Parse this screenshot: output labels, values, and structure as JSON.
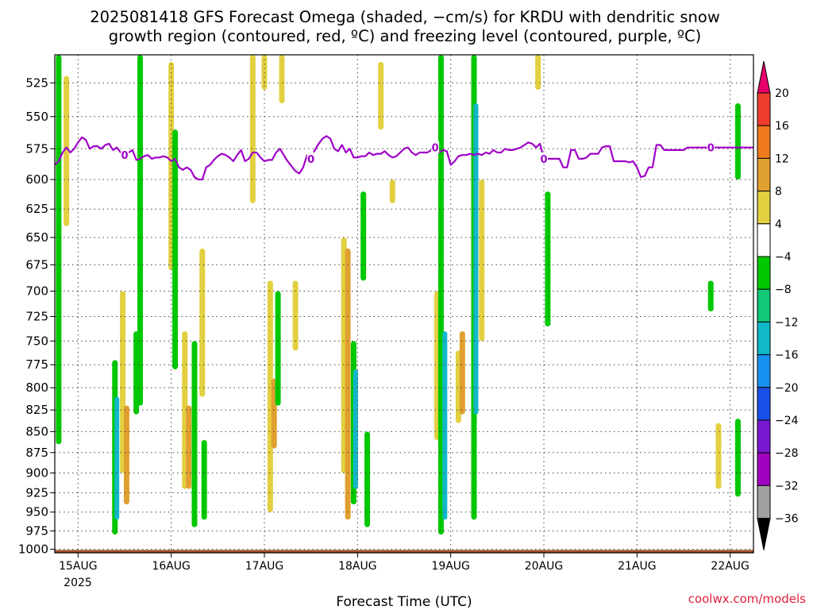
{
  "chart_data": {
    "type": "heatmap",
    "title_lines": [
      "2025081418 GFS Forecast Omega (shaded, −cm/s) for KRDU with dendritic snow",
      "growth region (contoured, red, ºC) and freezing level (contoured, purple, ºC)"
    ],
    "xlabel": "Forecast Time (UTC)",
    "ylabel": "",
    "x_tick_labels": [
      "15AUG",
      "16AUG",
      "17AUG",
      "18AUG",
      "19AUG",
      "20AUG",
      "21AUG",
      "22AUG"
    ],
    "x_tick_hours": [
      6,
      30,
      54,
      78,
      102,
      126,
      150,
      174
    ],
    "x_year_label": "2025",
    "xlim_hours": [
      0,
      180
    ],
    "y_ticks": [
      525,
      550,
      575,
      600,
      625,
      650,
      675,
      700,
      725,
      750,
      775,
      800,
      825,
      850,
      875,
      900,
      925,
      950,
      975,
      1000
    ],
    "ylim_hPa": [
      505,
      1005
    ],
    "y_scale": "log-pressure",
    "grid": "dotted",
    "colorbar_levels": [
      "20",
      "16",
      "12",
      "8",
      "4",
      "−4",
      "−8",
      "−12",
      "−16",
      "−20",
      "−24",
      "−28",
      "−32",
      "−36"
    ],
    "colorbar_colors": [
      "#e8006c",
      "#f03c2e",
      "#f07a1e",
      "#e0a030",
      "#e2d040",
      "#ffffff",
      "#00c800",
      "#10c878",
      "#10b8c8",
      "#1890f0",
      "#1850e8",
      "#7818d0",
      "#a000c0",
      "#a0a0a0"
    ],
    "freezing_level_hPa": {
      "hour": [
        0,
        1,
        2,
        3,
        4,
        5,
        6,
        7,
        8,
        9,
        10,
        11,
        12,
        13,
        14,
        15,
        16,
        17,
        18,
        19,
        20,
        21,
        22,
        23,
        24,
        25,
        26,
        27,
        28,
        29,
        30,
        31,
        32,
        33,
        34,
        35,
        36,
        37,
        38,
        39,
        40,
        41,
        42,
        43,
        44,
        45,
        46,
        47,
        48,
        49,
        50,
        51,
        52,
        53,
        54,
        55,
        56,
        57,
        58,
        59,
        60,
        61,
        62,
        63,
        64,
        65,
        66,
        67,
        68,
        69,
        70,
        71,
        72,
        73,
        74,
        75,
        76,
        77,
        78,
        79,
        80,
        81,
        82,
        83,
        84,
        85,
        86,
        87,
        88,
        89,
        90,
        91,
        92,
        93,
        94,
        95,
        96,
        97,
        98,
        99,
        100,
        101,
        102,
        103,
        104,
        105,
        106,
        107,
        108,
        109,
        110,
        111,
        112,
        113,
        114,
        115,
        116,
        117,
        118,
        119,
        120,
        121,
        122,
        123,
        124,
        125,
        126,
        127,
        128,
        129,
        130,
        131,
        132,
        133,
        134,
        135,
        136,
        137,
        138,
        139,
        140,
        141,
        142,
        143,
        144,
        145,
        146,
        147,
        148,
        149,
        150,
        151,
        152,
        153,
        154,
        155,
        156,
        157,
        158,
        159,
        160,
        161,
        162,
        163,
        164,
        165,
        166,
        167,
        168,
        169,
        170,
        171,
        172,
        173,
        174,
        175,
        176,
        177,
        178,
        179,
        180
      ],
      "hPa": [
        588,
        585,
        578,
        574,
        578,
        575,
        570,
        566,
        568,
        575,
        573,
        573,
        575,
        572,
        571,
        576,
        574,
        578,
        580,
        578,
        576,
        584,
        583,
        581,
        580,
        583,
        582,
        582,
        581,
        582,
        585,
        583,
        590,
        592,
        590,
        592,
        598,
        600,
        600,
        590,
        588,
        584,
        581,
        579,
        580,
        582,
        585,
        580,
        576,
        585,
        583,
        578,
        578,
        582,
        585,
        584,
        584,
        578,
        575,
        580,
        585,
        589,
        593,
        595,
        590,
        580,
        583,
        576,
        571,
        567,
        565,
        567,
        575,
        577,
        572,
        578,
        575,
        582,
        582,
        581,
        581,
        578,
        580,
        579,
        579,
        577,
        580,
        582,
        581,
        578,
        575,
        574,
        578,
        580,
        578,
        578,
        578,
        576,
        574,
        578,
        576,
        577,
        588,
        585,
        581,
        580,
        580,
        579,
        580,
        579,
        580,
        578,
        579,
        576,
        578,
        578,
        575,
        576,
        576,
        575,
        574,
        572,
        570,
        571,
        574,
        571,
        583,
        583,
        583,
        583,
        583,
        590,
        590,
        576,
        576,
        583,
        583,
        582,
        579,
        579,
        579,
        574,
        573,
        573,
        585,
        585,
        585,
        585,
        586,
        585,
        590,
        598,
        597,
        590,
        590,
        572,
        572,
        576,
        576,
        576,
        576,
        576,
        576,
        574,
        574,
        574,
        574,
        574,
        574,
        574,
        574,
        574,
        574,
        574,
        574,
        574,
        574,
        574,
        574,
        574,
        574
      ],
      "contour_label": "0"
    },
    "omega_features": [
      {
        "hour": 1,
        "top": 505,
        "bottom": 865,
        "value": -6
      },
      {
        "hour": 3,
        "top": 520,
        "bottom": 640,
        "value": 5
      },
      {
        "hour": 15.5,
        "top": 770,
        "bottom": 980,
        "value": -6
      },
      {
        "hour": 16,
        "top": 810,
        "bottom": 960,
        "value": -13
      },
      {
        "hour": 17.5,
        "top": 700,
        "bottom": 900,
        "value": 6
      },
      {
        "hour": 18.5,
        "top": 820,
        "bottom": 940,
        "value": 10
      },
      {
        "hour": 21,
        "top": 740,
        "bottom": 830,
        "value": -6
      },
      {
        "hour": 22,
        "top": 505,
        "bottom": 820,
        "value": -6
      },
      {
        "hour": 30,
        "top": 510,
        "bottom": 680,
        "value": 5
      },
      {
        "hour": 31,
        "top": 560,
        "bottom": 780,
        "value": -6
      },
      {
        "hour": 33.5,
        "top": 740,
        "bottom": 920,
        "value": 6
      },
      {
        "hour": 34.5,
        "top": 820,
        "bottom": 920,
        "value": 10
      },
      {
        "hour": 36,
        "top": 750,
        "bottom": 970,
        "value": -6
      },
      {
        "hour": 38,
        "top": 660,
        "bottom": 810,
        "value": 6
      },
      {
        "hour": 38.5,
        "top": 860,
        "bottom": 960,
        "value": -6
      },
      {
        "hour": 51,
        "top": 505,
        "bottom": 620,
        "value": 5
      },
      {
        "hour": 54,
        "top": 505,
        "bottom": 530,
        "value": 5
      },
      {
        "hour": 55.5,
        "top": 690,
        "bottom": 950,
        "value": 6
      },
      {
        "hour": 56.5,
        "top": 790,
        "bottom": 870,
        "value": 10
      },
      {
        "hour": 57.5,
        "top": 700,
        "bottom": 820,
        "value": -6
      },
      {
        "hour": 58.5,
        "top": 505,
        "bottom": 540,
        "value": 5
      },
      {
        "hour": 62,
        "top": 690,
        "bottom": 760,
        "value": 5
      },
      {
        "hour": 74.5,
        "top": 650,
        "bottom": 900,
        "value": 6
      },
      {
        "hour": 75.5,
        "top": 660,
        "bottom": 960,
        "value": 8
      },
      {
        "hour": 77,
        "top": 750,
        "bottom": 940,
        "value": -6
      },
      {
        "hour": 77.5,
        "top": 780,
        "bottom": 920,
        "value": -13
      },
      {
        "hour": 79.5,
        "top": 610,
        "bottom": 690,
        "value": -6
      },
      {
        "hour": 80.5,
        "top": 850,
        "bottom": 970,
        "value": -6
      },
      {
        "hour": 84,
        "top": 510,
        "bottom": 560,
        "value": 5
      },
      {
        "hour": 87,
        "top": 600,
        "bottom": 620,
        "value": 5
      },
      {
        "hour": 98.5,
        "top": 700,
        "bottom": 860,
        "value": 6
      },
      {
        "hour": 99.5,
        "top": 505,
        "bottom": 980,
        "value": -6
      },
      {
        "hour": 100.5,
        "top": 740,
        "bottom": 960,
        "value": -13
      },
      {
        "hour": 104,
        "top": 760,
        "bottom": 840,
        "value": 6
      },
      {
        "hour": 105,
        "top": 740,
        "bottom": 830,
        "value": 8
      },
      {
        "hour": 108,
        "top": 505,
        "bottom": 960,
        "value": -6
      },
      {
        "hour": 108.5,
        "top": 540,
        "bottom": 830,
        "value": -13
      },
      {
        "hour": 110,
        "top": 600,
        "bottom": 750,
        "value": 5
      },
      {
        "hour": 124.5,
        "top": 505,
        "bottom": 530,
        "value": 5
      },
      {
        "hour": 127,
        "top": 610,
        "bottom": 735,
        "value": -6
      },
      {
        "hour": 169,
        "top": 690,
        "bottom": 720,
        "value": -6
      },
      {
        "hour": 171,
        "top": 840,
        "bottom": 920,
        "value": 5
      },
      {
        "hour": 176,
        "top": 540,
        "bottom": 600,
        "value": -6
      },
      {
        "hour": 176,
        "top": 835,
        "bottom": 930,
        "value": -6
      }
    ],
    "surface_fill_color": "#a0522d"
  },
  "credit": "coolwx.com/models"
}
